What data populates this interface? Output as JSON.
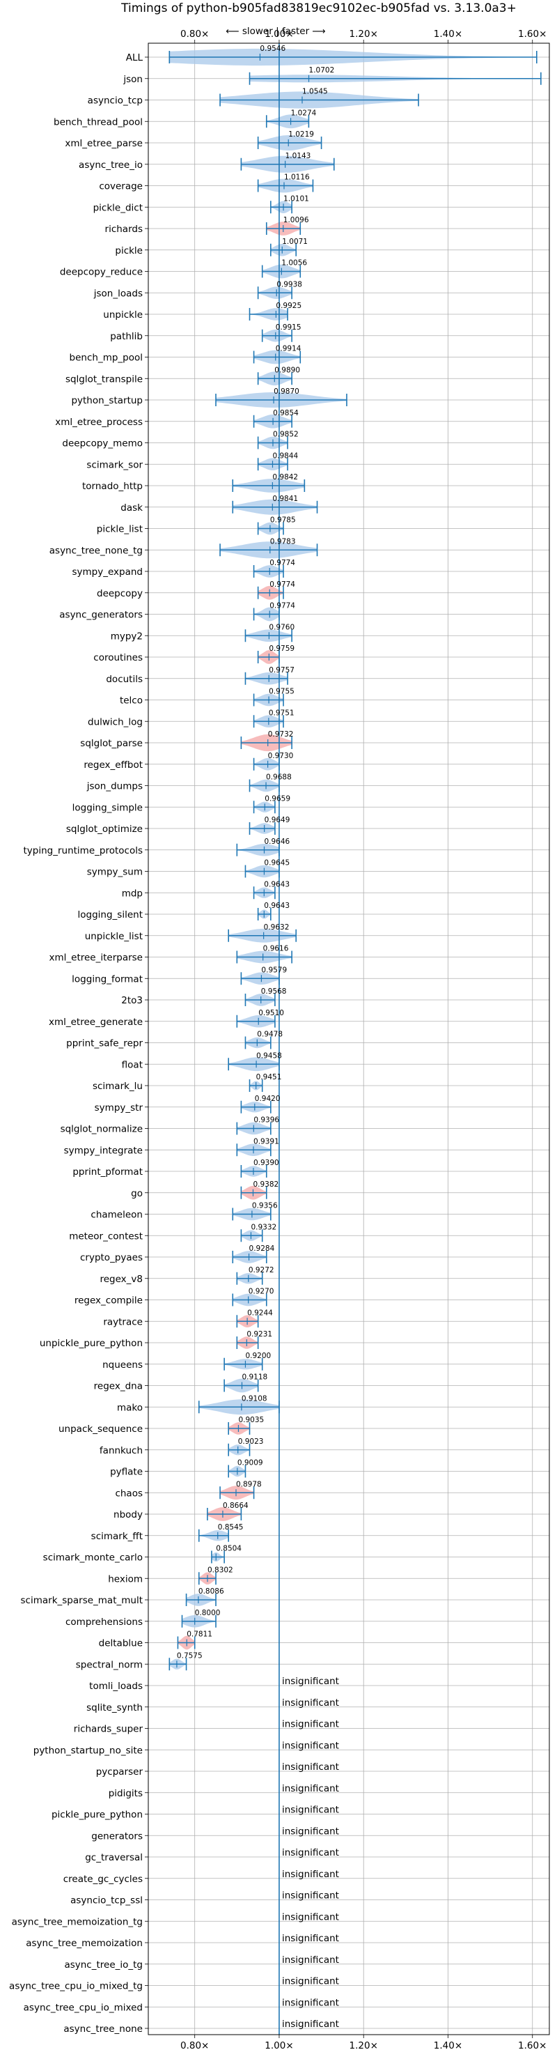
{
  "chart_data": {
    "type": "violin",
    "title": "Timings of python-b905fad83819ec9102ec-b905fad vs. 3.13.0a3+",
    "direction_label": "⟵ slower | faster ⟶",
    "x_ticks": [
      {
        "value": 0.8,
        "label": "0.80×"
      },
      {
        "value": 1.0,
        "label": "1.00×"
      },
      {
        "value": 1.2,
        "label": "1.20×"
      },
      {
        "value": 1.4,
        "label": "1.40×"
      },
      {
        "value": 1.6,
        "label": "1.60×"
      }
    ],
    "xlim": [
      0.69,
      1.64
    ],
    "reference_line": 1.0,
    "grid": true,
    "colors": {
      "violin": "#a8c8ea",
      "highlight": "#f4a6a6",
      "line": "#1f77b4",
      "grid": "#b0b0b0"
    },
    "insignificant_text": "insignificant",
    "benchmarks": [
      {
        "name": "ALL",
        "mean": 0.9546,
        "min": 0.74,
        "max": 1.61,
        "width": 0.55,
        "label": "0.9546"
      },
      {
        "name": "json",
        "mean": 1.0702,
        "min": 0.93,
        "max": 1.62,
        "width": 0.25,
        "label": "1.0702"
      },
      {
        "name": "asyncio_tcp",
        "mean": 1.0545,
        "min": 0.86,
        "max": 1.33,
        "width": 0.55,
        "label": "1.0545"
      },
      {
        "name": "bench_thread_pool",
        "mean": 1.0274,
        "min": 0.97,
        "max": 1.07,
        "width": 0.45,
        "label": "1.0274"
      },
      {
        "name": "xml_etree_parse",
        "mean": 1.0219,
        "min": 0.95,
        "max": 1.1,
        "width": 0.5,
        "label": "1.0219"
      },
      {
        "name": "async_tree_io",
        "mean": 1.0143,
        "min": 0.91,
        "max": 1.13,
        "width": 0.55,
        "label": "1.0143"
      },
      {
        "name": "coverage",
        "mean": 1.0116,
        "min": 0.95,
        "max": 1.08,
        "width": 0.45,
        "label": "1.0116"
      },
      {
        "name": "pickle_dict",
        "mean": 1.0101,
        "min": 0.98,
        "max": 1.03,
        "width": 0.4,
        "label": "1.0101"
      },
      {
        "name": "richards",
        "mean": 1.0096,
        "min": 0.97,
        "max": 1.05,
        "width": 0.45,
        "label": "1.0096",
        "highlight": true
      },
      {
        "name": "pickle",
        "mean": 1.0071,
        "min": 0.98,
        "max": 1.04,
        "width": 0.4,
        "label": "1.0071"
      },
      {
        "name": "deepcopy_reduce",
        "mean": 1.0056,
        "min": 0.96,
        "max": 1.05,
        "width": 0.45,
        "label": "1.0056"
      },
      {
        "name": "json_loads",
        "mean": 0.9938,
        "min": 0.95,
        "max": 1.03,
        "width": 0.4,
        "label": "0.9938"
      },
      {
        "name": "unpickle",
        "mean": 0.9925,
        "min": 0.93,
        "max": 1.02,
        "width": 0.4,
        "label": "0.9925"
      },
      {
        "name": "pathlib",
        "mean": 0.9915,
        "min": 0.96,
        "max": 1.03,
        "width": 0.4,
        "label": "0.9915"
      },
      {
        "name": "bench_mp_pool",
        "mean": 0.9914,
        "min": 0.94,
        "max": 1.05,
        "width": 0.45,
        "label": "0.9914"
      },
      {
        "name": "sqlglot_transpile",
        "mean": 0.989,
        "min": 0.95,
        "max": 1.03,
        "width": 0.45,
        "label": "0.9890"
      },
      {
        "name": "python_startup",
        "mean": 0.987,
        "min": 0.85,
        "max": 1.16,
        "width": 0.5,
        "label": "0.9870"
      },
      {
        "name": "xml_etree_process",
        "mean": 0.9854,
        "min": 0.94,
        "max": 1.03,
        "width": 0.45,
        "label": "0.9854"
      },
      {
        "name": "deepcopy_memo",
        "mean": 0.9852,
        "min": 0.95,
        "max": 1.02,
        "width": 0.4,
        "label": "0.9852"
      },
      {
        "name": "scimark_sor",
        "mean": 0.9844,
        "min": 0.95,
        "max": 1.02,
        "width": 0.4,
        "label": "0.9844"
      },
      {
        "name": "tornado_http",
        "mean": 0.9842,
        "min": 0.89,
        "max": 1.06,
        "width": 0.45,
        "label": "0.9842"
      },
      {
        "name": "dask",
        "mean": 0.9841,
        "min": 0.89,
        "max": 1.09,
        "width": 0.5,
        "label": "0.9841"
      },
      {
        "name": "pickle_list",
        "mean": 0.9785,
        "min": 0.95,
        "max": 1.01,
        "width": 0.4,
        "label": "0.9785"
      },
      {
        "name": "async_tree_none_tg",
        "mean": 0.9783,
        "min": 0.86,
        "max": 1.09,
        "width": 0.55,
        "label": "0.9783"
      },
      {
        "name": "sympy_expand",
        "mean": 0.9774,
        "min": 0.94,
        "max": 1.01,
        "width": 0.4,
        "label": "0.9774"
      },
      {
        "name": "deepcopy",
        "mean": 0.9774,
        "min": 0.95,
        "max": 1.01,
        "width": 0.45,
        "label": "0.9774",
        "highlight": true
      },
      {
        "name": "async_generators",
        "mean": 0.9774,
        "min": 0.94,
        "max": 1.0,
        "width": 0.45,
        "label": "0.9774"
      },
      {
        "name": "mypy2",
        "mean": 0.976,
        "min": 0.92,
        "max": 1.03,
        "width": 0.4,
        "label": "0.9760"
      },
      {
        "name": "coroutines",
        "mean": 0.9759,
        "min": 0.95,
        "max": 1.0,
        "width": 0.45,
        "label": "0.9759",
        "highlight": true
      },
      {
        "name": "docutils",
        "mean": 0.9757,
        "min": 0.92,
        "max": 1.02,
        "width": 0.4,
        "label": "0.9757"
      },
      {
        "name": "telco",
        "mean": 0.9755,
        "min": 0.94,
        "max": 1.01,
        "width": 0.4,
        "label": "0.9755"
      },
      {
        "name": "dulwich_log",
        "mean": 0.9751,
        "min": 0.94,
        "max": 1.01,
        "width": 0.4,
        "label": "0.9751"
      },
      {
        "name": "sqlglot_parse",
        "mean": 0.9732,
        "min": 0.91,
        "max": 1.03,
        "width": 0.55,
        "label": "0.9732",
        "highlight": true
      },
      {
        "name": "regex_effbot",
        "mean": 0.973,
        "min": 0.94,
        "max": 1.0,
        "width": 0.4,
        "label": "0.9730"
      },
      {
        "name": "json_dumps",
        "mean": 0.9688,
        "min": 0.93,
        "max": 1.0,
        "width": 0.4,
        "label": "0.9688"
      },
      {
        "name": "logging_simple",
        "mean": 0.9659,
        "min": 0.94,
        "max": 0.99,
        "width": 0.35,
        "label": "0.9659"
      },
      {
        "name": "sqlglot_optimize",
        "mean": 0.9649,
        "min": 0.93,
        "max": 0.99,
        "width": 0.35,
        "label": "0.9649"
      },
      {
        "name": "typing_runtime_protocols",
        "mean": 0.9646,
        "min": 0.9,
        "max": 1.0,
        "width": 0.4,
        "label": "0.9646"
      },
      {
        "name": "sympy_sum",
        "mean": 0.9645,
        "min": 0.92,
        "max": 1.0,
        "width": 0.4,
        "label": "0.9645"
      },
      {
        "name": "mdp",
        "mean": 0.9643,
        "min": 0.94,
        "max": 0.99,
        "width": 0.35,
        "label": "0.9643"
      },
      {
        "name": "logging_silent",
        "mean": 0.9643,
        "min": 0.95,
        "max": 0.98,
        "width": 0.3,
        "label": "0.9643"
      },
      {
        "name": "unpickle_list",
        "mean": 0.9632,
        "min": 0.88,
        "max": 1.04,
        "width": 0.45,
        "label": "0.9632"
      },
      {
        "name": "xml_etree_iterparse",
        "mean": 0.9616,
        "min": 0.9,
        "max": 1.03,
        "width": 0.4,
        "label": "0.9616"
      },
      {
        "name": "logging_format",
        "mean": 0.9579,
        "min": 0.91,
        "max": 1.0,
        "width": 0.4,
        "label": "0.9579"
      },
      {
        "name": "2to3",
        "mean": 0.9568,
        "min": 0.92,
        "max": 0.99,
        "width": 0.4,
        "label": "0.9568"
      },
      {
        "name": "xml_etree_generate",
        "mean": 0.951,
        "min": 0.9,
        "max": 0.99,
        "width": 0.4,
        "label": "0.9510"
      },
      {
        "name": "pprint_safe_repr",
        "mean": 0.9478,
        "min": 0.92,
        "max": 0.98,
        "width": 0.35,
        "label": "0.9478"
      },
      {
        "name": "float",
        "mean": 0.9458,
        "min": 0.88,
        "max": 1.0,
        "width": 0.45,
        "label": "0.9458"
      },
      {
        "name": "scimark_lu",
        "mean": 0.9451,
        "min": 0.93,
        "max": 0.96,
        "width": 0.3,
        "label": "0.9451"
      },
      {
        "name": "sympy_str",
        "mean": 0.942,
        "min": 0.91,
        "max": 0.98,
        "width": 0.35,
        "label": "0.9420"
      },
      {
        "name": "sqlglot_normalize",
        "mean": 0.9396,
        "min": 0.9,
        "max": 0.98,
        "width": 0.4,
        "label": "0.9396"
      },
      {
        "name": "sympy_integrate",
        "mean": 0.9391,
        "min": 0.9,
        "max": 0.98,
        "width": 0.4,
        "label": "0.9391"
      },
      {
        "name": "pprint_pformat",
        "mean": 0.939,
        "min": 0.91,
        "max": 0.97,
        "width": 0.35,
        "label": "0.9390"
      },
      {
        "name": "go",
        "mean": 0.9382,
        "min": 0.91,
        "max": 0.97,
        "width": 0.45,
        "label": "0.9382",
        "highlight": true
      },
      {
        "name": "chameleon",
        "mean": 0.9356,
        "min": 0.89,
        "max": 0.98,
        "width": 0.4,
        "label": "0.9356"
      },
      {
        "name": "meteor_contest",
        "mean": 0.9332,
        "min": 0.91,
        "max": 0.96,
        "width": 0.35,
        "label": "0.9332"
      },
      {
        "name": "crypto_pyaes",
        "mean": 0.9284,
        "min": 0.89,
        "max": 0.97,
        "width": 0.4,
        "label": "0.9284"
      },
      {
        "name": "regex_v8",
        "mean": 0.9272,
        "min": 0.9,
        "max": 0.96,
        "width": 0.35,
        "label": "0.9272"
      },
      {
        "name": "regex_compile",
        "mean": 0.927,
        "min": 0.89,
        "max": 0.97,
        "width": 0.4,
        "label": "0.9270"
      },
      {
        "name": "raytrace",
        "mean": 0.9244,
        "min": 0.9,
        "max": 0.95,
        "width": 0.4,
        "label": "0.9244",
        "highlight": true
      },
      {
        "name": "unpickle_pure_python",
        "mean": 0.9231,
        "min": 0.9,
        "max": 0.95,
        "width": 0.4,
        "label": "0.9231",
        "highlight": true
      },
      {
        "name": "nqueens",
        "mean": 0.92,
        "min": 0.87,
        "max": 0.96,
        "width": 0.35,
        "label": "0.9200"
      },
      {
        "name": "regex_dna",
        "mean": 0.9118,
        "min": 0.87,
        "max": 0.95,
        "width": 0.45,
        "label": "0.9118"
      },
      {
        "name": "mako",
        "mean": 0.9108,
        "min": 0.81,
        "max": 1.0,
        "width": 0.5,
        "label": "0.9108"
      },
      {
        "name": "unpack_sequence",
        "mean": 0.9035,
        "min": 0.88,
        "max": 0.93,
        "width": 0.4,
        "label": "0.9035",
        "highlight": true
      },
      {
        "name": "fannkuch",
        "mean": 0.9023,
        "min": 0.88,
        "max": 0.93,
        "width": 0.35,
        "label": "0.9023"
      },
      {
        "name": "pyflate",
        "mean": 0.9009,
        "min": 0.88,
        "max": 0.92,
        "width": 0.35,
        "label": "0.9009"
      },
      {
        "name": "chaos",
        "mean": 0.8978,
        "min": 0.86,
        "max": 0.94,
        "width": 0.45,
        "label": "0.8978",
        "highlight": true
      },
      {
        "name": "nbody",
        "mean": 0.8664,
        "min": 0.83,
        "max": 0.91,
        "width": 0.45,
        "label": "0.8664",
        "highlight": true
      },
      {
        "name": "scimark_fft",
        "mean": 0.8545,
        "min": 0.81,
        "max": 0.88,
        "width": 0.35,
        "label": "0.8545"
      },
      {
        "name": "scimark_monte_carlo",
        "mean": 0.8504,
        "min": 0.84,
        "max": 0.87,
        "width": 0.3,
        "label": "0.8504"
      },
      {
        "name": "hexiom",
        "mean": 0.8302,
        "min": 0.81,
        "max": 0.85,
        "width": 0.4,
        "label": "0.8302",
        "highlight": true
      },
      {
        "name": "scimark_sparse_mat_mult",
        "mean": 0.8086,
        "min": 0.78,
        "max": 0.85,
        "width": 0.4,
        "label": "0.8086"
      },
      {
        "name": "comprehensions",
        "mean": 0.8,
        "min": 0.77,
        "max": 0.85,
        "width": 0.4,
        "label": "0.8000"
      },
      {
        "name": "deltablue",
        "mean": 0.7811,
        "min": 0.76,
        "max": 0.8,
        "width": 0.45,
        "label": "0.7811",
        "highlight": true
      },
      {
        "name": "spectral_norm",
        "mean": 0.7575,
        "min": 0.74,
        "max": 0.78,
        "width": 0.35,
        "label": "0.7575"
      },
      {
        "name": "tomli_loads",
        "insignificant": true
      },
      {
        "name": "sqlite_synth",
        "insignificant": true
      },
      {
        "name": "richards_super",
        "insignificant": true
      },
      {
        "name": "python_startup_no_site",
        "insignificant": true
      },
      {
        "name": "pycparser",
        "insignificant": true
      },
      {
        "name": "pidigits",
        "insignificant": true
      },
      {
        "name": "pickle_pure_python",
        "insignificant": true
      },
      {
        "name": "generators",
        "insignificant": true
      },
      {
        "name": "gc_traversal",
        "insignificant": true
      },
      {
        "name": "create_gc_cycles",
        "insignificant": true
      },
      {
        "name": "asyncio_tcp_ssl",
        "insignificant": true
      },
      {
        "name": "async_tree_memoization_tg",
        "insignificant": true
      },
      {
        "name": "async_tree_memoization",
        "insignificant": true
      },
      {
        "name": "async_tree_io_tg",
        "insignificant": true
      },
      {
        "name": "async_tree_cpu_io_mixed_tg",
        "insignificant": true
      },
      {
        "name": "async_tree_cpu_io_mixed",
        "insignificant": true
      },
      {
        "name": "async_tree_none",
        "insignificant": true
      }
    ]
  }
}
